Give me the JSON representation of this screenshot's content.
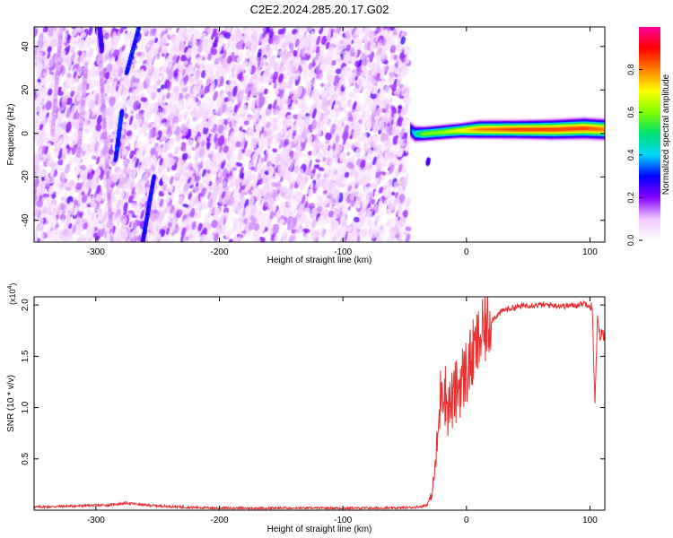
{
  "figure": {
    "title": "C2E2.2024.285.20.17.G02"
  },
  "chart_data": [
    {
      "type": "heatmap",
      "xlabel": "Height of straight line (km)",
      "ylabel": "Frequency (Hz)",
      "xlim": [
        -350,
        112
      ],
      "ylim": [
        -50,
        49
      ],
      "xticks": [
        -300,
        -200,
        -100,
        0,
        100
      ],
      "yticks": [
        -40,
        -20,
        0,
        20,
        40
      ],
      "colorbar": {
        "label": "Normalized spectral amplitude",
        "range": [
          0,
          1
        ],
        "ticks": [
          0.0,
          0.2,
          0.4,
          0.6,
          0.8
        ],
        "colors": [
          "#ffffff",
          "#f0c8ff",
          "#8800ff",
          "#0000ff",
          "#00d8ff",
          "#00e070",
          "#80ff00",
          "#ffff00",
          "#ff8000",
          "#ff0000",
          "#ff00a0"
        ]
      },
      "noise_region": {
        "x_from": -350,
        "x_to": -47,
        "typical_amplitude": 0.15
      },
      "features": [
        {
          "kind": "streak",
          "x1": -298,
          "y1": 49,
          "x2": -287,
          "y2": -50,
          "amplitude": 0.12
        },
        {
          "kind": "streak",
          "x1": -297,
          "y1": 49,
          "x2": -295,
          "y2": 38,
          "amplitude": 0.25
        },
        {
          "kind": "streak",
          "x1": -265,
          "y1": 49,
          "x2": -275,
          "y2": 28,
          "amplitude": 0.3
        },
        {
          "kind": "streak",
          "x1": -279,
          "y1": 10,
          "x2": -284,
          "y2": -12,
          "amplitude": 0.3
        },
        {
          "kind": "streak",
          "x1": -253,
          "y1": -20,
          "x2": -262,
          "y2": -50,
          "amplitude": 0.28
        },
        {
          "kind": "streak",
          "x1": -328,
          "y1": 49,
          "x2": -335,
          "y2": 0,
          "amplitude": 0.12
        },
        {
          "kind": "streak",
          "x1": -308,
          "y1": 30,
          "x2": -314,
          "y2": -10,
          "amplitude": 0.12
        }
      ],
      "signal_band": [
        {
          "x": -46,
          "freq": 2.0,
          "width": 4.0,
          "amplitude": 0.3
        },
        {
          "x": -42,
          "freq": 0.0,
          "width": 3.5,
          "amplitude": 0.45
        },
        {
          "x": -35,
          "freq": 0.0,
          "width": 3.0,
          "amplitude": 0.6
        },
        {
          "x": -25,
          "freq": 0.5,
          "width": 3.0,
          "amplitude": 0.6
        },
        {
          "x": -15,
          "freq": 1.0,
          "width": 3.0,
          "amplitude": 0.65
        },
        {
          "x": -5,
          "freq": 1.5,
          "width": 3.0,
          "amplitude": 0.7
        },
        {
          "x": 10,
          "freq": 2.0,
          "width": 3.5,
          "amplitude": 0.8
        },
        {
          "x": 40,
          "freq": 2.0,
          "width": 3.5,
          "amplitude": 0.85
        },
        {
          "x": 70,
          "freq": 2.0,
          "width": 3.8,
          "amplitude": 0.85
        },
        {
          "x": 95,
          "freq": 2.5,
          "width": 4.0,
          "amplitude": 0.85
        },
        {
          "x": 112,
          "freq": 2.0,
          "width": 4.0,
          "amplitude": 0.8
        }
      ],
      "blob": {
        "x": -31,
        "freq": -13,
        "amplitude": 0.25
      }
    },
    {
      "type": "line",
      "xlabel": "Height of straight line (km)",
      "ylabel": "SNR (10 * v/v)",
      "y_scale_note": "(x10^4)",
      "y_scale_base": "(x10",
      "y_scale_exp": "4",
      "y_scale_close": ")",
      "xlim": [
        -350,
        112
      ],
      "ylim": [
        0,
        2.08
      ],
      "xticks": [
        -300,
        -200,
        -100,
        0,
        100
      ],
      "yticks": [
        0.5,
        1.0,
        1.5,
        2.0
      ],
      "ytick_labels": [
        "0.5",
        "1.0",
        "1.5",
        "2.0"
      ],
      "color": "#e83030",
      "series": [
        {
          "x": [
            -350,
            -320,
            -290,
            -275,
            -260,
            -230,
            -200,
            -150,
            -100,
            -60,
            -40,
            -32,
            -28,
            -25,
            -22,
            -20,
            -15,
            -10,
            -5,
            0,
            5,
            10,
            20,
            30,
            40,
            50,
            60,
            70,
            80,
            90,
            95,
            100,
            102,
            104,
            106,
            108,
            110,
            112
          ],
          "y": [
            0.03,
            0.04,
            0.05,
            0.07,
            0.05,
            0.03,
            0.02,
            0.02,
            0.02,
            0.02,
            0.03,
            0.05,
            0.15,
            0.45,
            0.9,
            1.3,
            1.0,
            1.1,
            1.25,
            1.35,
            1.5,
            1.65,
            1.85,
            1.95,
            1.98,
            2.0,
            2.0,
            2.0,
            1.99,
            2.0,
            2.02,
            2.0,
            1.95,
            1.0,
            1.85,
            1.7,
            1.72,
            1.7
          ]
        }
      ]
    }
  ]
}
